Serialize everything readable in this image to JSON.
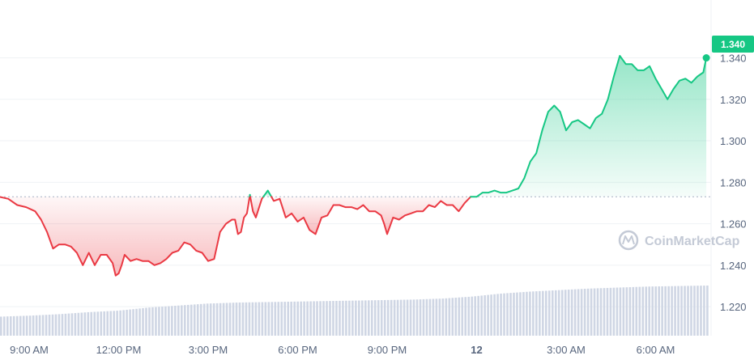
{
  "watermark": {
    "text": "CoinMarketCap",
    "icon": "coinmarketcap-logo-icon"
  },
  "colors": {
    "up": "#16c784",
    "down": "#ea3943",
    "grid": "#eff2f5",
    "baseline": "#a6b0c3",
    "volume": "#cfd6e4",
    "axis_text": "#58667e"
  },
  "current_price_label": "1.340",
  "chart_data": {
    "type": "line",
    "title": "",
    "xlabel": "",
    "ylabel": "",
    "baseline": 1.273,
    "ylim": [
      1.206,
      1.364
    ],
    "grid": true,
    "y_ticks": [
      "1.220",
      "1.240",
      "1.260",
      "1.280",
      "1.300",
      "1.320",
      "1.340"
    ],
    "x_ticks": [
      {
        "label": "9:00 AM",
        "t": 1
      },
      {
        "label": "12:00 PM",
        "t": 4
      },
      {
        "label": "3:00 PM",
        "t": 7
      },
      {
        "label": "6:00 PM",
        "t": 10
      },
      {
        "label": "9:00 PM",
        "t": 13
      },
      {
        "label": "12",
        "t": 16,
        "bold": true
      },
      {
        "label": "3:00 AM",
        "t": 19
      },
      {
        "label": "6:00 AM",
        "t": 22
      }
    ],
    "x_range_hours": [
      0,
      23.8
    ],
    "series": [
      {
        "x": [
          0,
          0.3,
          0.6,
          0.9,
          1.2,
          1.4,
          1.6,
          1.8,
          2.0,
          2.2,
          2.4,
          2.6,
          2.8,
          3.0,
          3.2,
          3.4,
          3.6,
          3.8,
          3.9,
          4.0,
          4.1,
          4.2,
          4.4,
          4.6,
          4.8,
          5.0,
          5.2,
          5.4,
          5.6,
          5.8,
          6.0,
          6.2,
          6.4,
          6.6,
          6.8,
          7.0,
          7.2,
          7.4,
          7.6,
          7.8,
          7.9,
          8.0,
          8.1,
          8.2,
          8.3,
          8.4,
          8.5,
          8.6,
          8.8,
          9.0,
          9.2,
          9.4,
          9.6,
          9.8,
          10.0,
          10.2,
          10.4,
          10.6,
          10.8,
          11.0,
          11.2,
          11.4,
          11.6,
          11.8,
          12.0,
          12.2,
          12.4,
          12.6,
          12.8,
          12.9,
          13.0,
          13.2,
          13.4,
          13.6,
          13.8,
          14.0,
          14.2,
          14.4,
          14.6,
          14.8,
          15.0,
          15.2,
          15.4,
          15.6,
          15.8,
          16.0,
          16.2,
          16.4,
          16.6,
          16.8,
          17.0,
          17.2,
          17.4,
          17.6,
          17.8,
          18.0,
          18.2,
          18.4,
          18.6,
          18.8,
          19.0,
          19.2,
          19.4,
          19.6,
          19.8,
          20.0,
          20.2,
          20.4,
          20.6,
          20.8,
          21.0,
          21.2,
          21.4,
          21.6,
          21.8,
          22.0,
          22.2,
          22.4,
          22.6,
          22.8,
          23.0,
          23.2,
          23.4,
          23.6,
          23.7
        ],
        "values": [
          1.273,
          1.272,
          1.269,
          1.268,
          1.266,
          1.262,
          1.256,
          1.248,
          1.25,
          1.25,
          1.249,
          1.246,
          1.24,
          1.246,
          1.24,
          1.245,
          1.245,
          1.241,
          1.235,
          1.236,
          1.24,
          1.245,
          1.242,
          1.243,
          1.242,
          1.242,
          1.24,
          1.241,
          1.243,
          1.246,
          1.247,
          1.251,
          1.25,
          1.247,
          1.246,
          1.242,
          1.243,
          1.256,
          1.26,
          1.262,
          1.262,
          1.255,
          1.256,
          1.263,
          1.265,
          1.274,
          1.266,
          1.263,
          1.272,
          1.276,
          1.271,
          1.272,
          1.263,
          1.265,
          1.261,
          1.263,
          1.257,
          1.255,
          1.263,
          1.264,
          1.269,
          1.269,
          1.268,
          1.268,
          1.267,
          1.269,
          1.266,
          1.266,
          1.264,
          1.26,
          1.255,
          1.263,
          1.262,
          1.264,
          1.265,
          1.266,
          1.266,
          1.269,
          1.268,
          1.271,
          1.269,
          1.269,
          1.266,
          1.27,
          1.273,
          1.273,
          1.275,
          1.275,
          1.276,
          1.275,
          1.275,
          1.276,
          1.277,
          1.282,
          1.29,
          1.294,
          1.305,
          1.314,
          1.317,
          1.314,
          1.305,
          1.309,
          1.31,
          1.308,
          1.306,
          1.311,
          1.313,
          1.32,
          1.331,
          1.341,
          1.337,
          1.337,
          1.334,
          1.334,
          1.336,
          1.33,
          1.325,
          1.32,
          1.325,
          1.329,
          1.33,
          1.328,
          1.331,
          1.333,
          1.34
        ]
      }
    ],
    "volume": {
      "x_range_hours": [
        0,
        23.7
      ],
      "values_relative": [
        0.38,
        0.4,
        0.43,
        0.47,
        0.5,
        0.56,
        0.6,
        0.64,
        0.66,
        0.67,
        0.68,
        0.69,
        0.7,
        0.71,
        0.72,
        0.74,
        0.78,
        0.84,
        0.88,
        0.91,
        0.94,
        0.96,
        0.98,
        0.99,
        1.0
      ]
    }
  }
}
